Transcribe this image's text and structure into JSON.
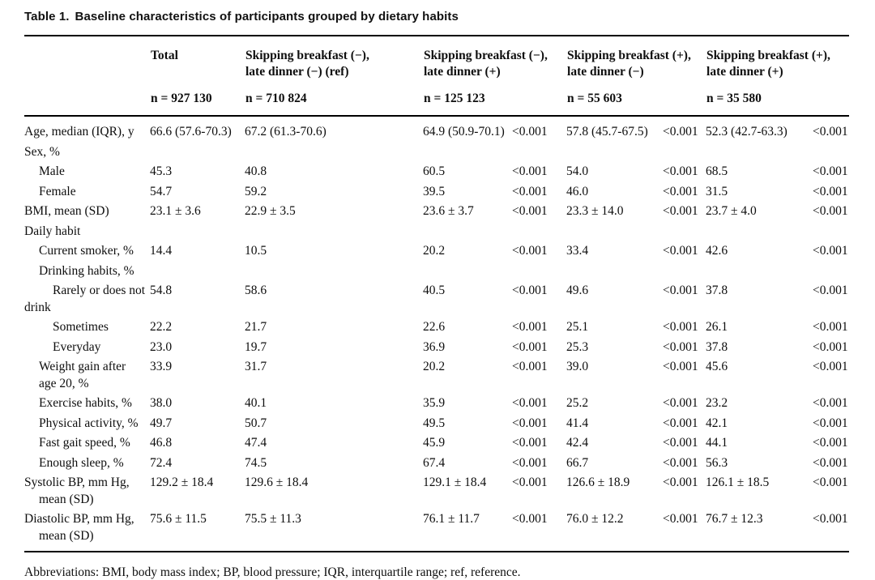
{
  "title": {
    "label": "Table 1.",
    "text": "Baseline characteristics of participants grouped by dietary habits"
  },
  "footnote": "Abbreviations: BMI, body mass index; BP, blood pressure; IQR, interquartile range; ref, reference.",
  "table": {
    "groups": [
      {
        "key": "total",
        "line1": "Total",
        "line2": "",
        "n": "n = 927 130"
      },
      {
        "key": "skip_bf_neg_dinner_neg_ref",
        "line1": "Skipping breakfast (−),",
        "line2": "late dinner (−) (ref)",
        "n": "n = 710 824"
      },
      {
        "key": "skip_bf_neg_dinner_pos",
        "line1": "Skipping breakfast (−),",
        "line2": "late dinner (+)",
        "n": "n = 125 123"
      },
      {
        "key": "skip_bf_pos_dinner_neg",
        "line1": "Skipping breakfast (+),",
        "line2": "late dinner (−)",
        "n": "n = 55 603"
      },
      {
        "key": "skip_bf_pos_dinner_pos",
        "line1": "Skipping breakfast (+),",
        "line2": "late dinner (+)",
        "n": "n = 35 580"
      }
    ],
    "cell_order": [
      "total",
      "ref",
      "group2_value",
      "group2_p",
      "group3_value",
      "group3_p",
      "group4_value",
      "group4_p"
    ],
    "rows": [
      {
        "label_lines": [
          {
            "text": "Age, median (IQR), y",
            "indent": 0
          }
        ],
        "cells": [
          "66.6 (57.6-70.3)",
          "67.2 (61.3-70.6)",
          "64.9 (50.9-70.1)",
          "<0.001",
          "57.8 (45.7-67.5)",
          "<0.001",
          "52.3 (42.7-63.3)",
          "<0.001"
        ]
      },
      {
        "label_lines": [
          {
            "text": "Sex, %",
            "indent": 0
          }
        ],
        "cells": [
          "",
          "",
          "",
          "",
          "",
          "",
          "",
          ""
        ]
      },
      {
        "label_lines": [
          {
            "text": "Male",
            "indent": 1
          }
        ],
        "cells": [
          "45.3",
          "40.8",
          "60.5",
          "<0.001",
          "54.0",
          "<0.001",
          "68.5",
          "<0.001"
        ]
      },
      {
        "label_lines": [
          {
            "text": "Female",
            "indent": 1
          }
        ],
        "cells": [
          "54.7",
          "59.2",
          "39.5",
          "<0.001",
          "46.0",
          "<0.001",
          "31.5",
          "<0.001"
        ]
      },
      {
        "label_lines": [
          {
            "text": "BMI, mean (SD)",
            "indent": 0
          }
        ],
        "cells": [
          "23.1 ± 3.6",
          "22.9 ± 3.5",
          "23.6 ± 3.7",
          "<0.001",
          "23.3 ± 14.0",
          "<0.001",
          "23.7 ± 4.0",
          "<0.001"
        ]
      },
      {
        "label_lines": [
          {
            "text": "Daily habit",
            "indent": 0
          }
        ],
        "cells": [
          "",
          "",
          "",
          "",
          "",
          "",
          "",
          ""
        ]
      },
      {
        "label_lines": [
          {
            "text": "Current smoker, %",
            "indent": 1
          }
        ],
        "cells": [
          "14.4",
          "10.5",
          "20.2",
          "<0.001",
          "33.4",
          "<0.001",
          "42.6",
          "<0.001"
        ]
      },
      {
        "label_lines": [
          {
            "text": "Drinking habits, %",
            "indent": 1
          }
        ],
        "cells": [
          "",
          "",
          "",
          "",
          "",
          "",
          "",
          ""
        ]
      },
      {
        "label_lines": [
          {
            "text": "Rarely or does not",
            "indent": 2
          },
          {
            "text": "drink",
            "indent": 0
          }
        ],
        "cells": [
          "54.8",
          "58.6",
          "40.5",
          "<0.001",
          "49.6",
          "<0.001",
          "37.8",
          "<0.001"
        ]
      },
      {
        "label_lines": [
          {
            "text": "Sometimes",
            "indent": 2
          }
        ],
        "cells": [
          "22.2",
          "21.7",
          "22.6",
          "<0.001",
          "25.1",
          "<0.001",
          "26.1",
          "<0.001"
        ]
      },
      {
        "label_lines": [
          {
            "text": "Everyday",
            "indent": 2
          }
        ],
        "cells": [
          "23.0",
          "19.7",
          "36.9",
          "<0.001",
          "25.3",
          "<0.001",
          "37.8",
          "<0.001"
        ]
      },
      {
        "label_lines": [
          {
            "text": "Weight gain after",
            "indent": 1
          },
          {
            "text": "age 20, %",
            "indent": 1
          }
        ],
        "cells": [
          "33.9",
          "31.7",
          "20.2",
          "<0.001",
          "39.0",
          "<0.001",
          "45.6",
          "<0.001"
        ]
      },
      {
        "label_lines": [
          {
            "text": "Exercise habits, %",
            "indent": 1
          }
        ],
        "cells": [
          "38.0",
          "40.1",
          "35.9",
          "<0.001",
          "25.2",
          "<0.001",
          "23.2",
          "<0.001"
        ]
      },
      {
        "label_lines": [
          {
            "text": "Physical activity, %",
            "indent": 1
          }
        ],
        "cells": [
          "49.7",
          "50.7",
          "49.5",
          "<0.001",
          "41.4",
          "<0.001",
          "42.1",
          "<0.001"
        ]
      },
      {
        "label_lines": [
          {
            "text": "Fast gait speed, %",
            "indent": 1
          }
        ],
        "cells": [
          "46.8",
          "47.4",
          "45.9",
          "<0.001",
          "42.4",
          "<0.001",
          "44.1",
          "<0.001"
        ]
      },
      {
        "label_lines": [
          {
            "text": "Enough sleep, %",
            "indent": 1
          }
        ],
        "cells": [
          "72.4",
          "74.5",
          "67.4",
          "<0.001",
          "66.7",
          "<0.001",
          "56.3",
          "<0.001"
        ]
      },
      {
        "label_lines": [
          {
            "text": "Systolic BP, mm Hg,",
            "indent": 0
          },
          {
            "text": "mean (SD)",
            "indent": 1
          }
        ],
        "cells": [
          "129.2 ± 18.4",
          "129.6 ± 18.4",
          "129.1 ± 18.4",
          "<0.001",
          "126.6 ± 18.9",
          "<0.001",
          "126.1 ± 18.5",
          "<0.001"
        ]
      },
      {
        "label_lines": [
          {
            "text": "Diastolic BP, mm Hg,",
            "indent": 0
          },
          {
            "text": "mean (SD)",
            "indent": 1
          }
        ],
        "cells": [
          "75.6 ± 11.5",
          "75.5 ± 11.3",
          "76.1 ± 11.7",
          "<0.001",
          "76.0 ± 12.2",
          "<0.001",
          "76.7 ± 12.3",
          "<0.001"
        ]
      }
    ]
  }
}
